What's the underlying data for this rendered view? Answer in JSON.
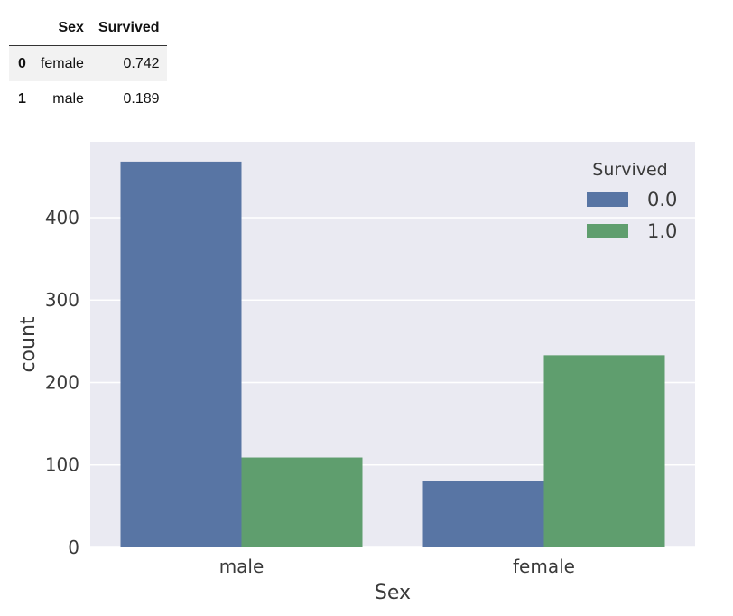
{
  "table": {
    "columns": [
      "",
      "Sex",
      "Survived"
    ],
    "rows": [
      {
        "index": "0",
        "sex": "female",
        "survived": "0.742"
      },
      {
        "index": "1",
        "sex": "male",
        "survived": "0.189"
      }
    ]
  },
  "chart_data": {
    "type": "bar",
    "categories": [
      "male",
      "female"
    ],
    "series": [
      {
        "name": "0.0",
        "values": [
          468,
          81
        ],
        "color": "#5875a4"
      },
      {
        "name": "1.0",
        "values": [
          109,
          233
        ],
        "color": "#5f9e6e"
      }
    ],
    "xlabel": "Sex",
    "ylabel": "count",
    "ylim": [
      0,
      492
    ],
    "yticks": [
      0,
      100,
      200,
      300,
      400
    ],
    "grid": true,
    "legend": {
      "title": "Survived",
      "placement": "top-right"
    },
    "background": "#eaeaf2"
  }
}
